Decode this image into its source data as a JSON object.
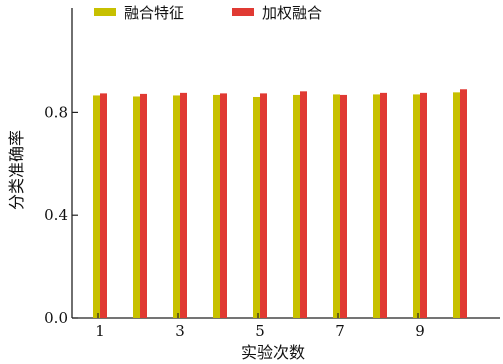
{
  "chart_data": {
    "type": "bar",
    "categories": [
      "1",
      "2",
      "3",
      "4",
      "5",
      "6",
      "7",
      "8",
      "9",
      "10"
    ],
    "xtick_labels": [
      "1",
      "3",
      "5",
      "7",
      "9"
    ],
    "xtick_positions": [
      1,
      3,
      5,
      7,
      9
    ],
    "series": [
      {
        "name": "融合特征",
        "color": "#c7c000",
        "values": [
          0.866,
          0.862,
          0.866,
          0.868,
          0.86,
          0.868,
          0.87,
          0.87,
          0.87,
          0.878
        ]
      },
      {
        "name": "加权融合",
        "color": "#e03a33",
        "values": [
          0.874,
          0.872,
          0.876,
          0.874,
          0.874,
          0.882,
          0.868,
          0.876,
          0.876,
          0.89
        ]
      }
    ],
    "xlabel": "实验次数",
    "ylabel": "分类准确率",
    "ylim": [
      0.0,
      1.0
    ],
    "yticks": [
      0.0,
      0.4,
      0.8
    ],
    "ytick_labels": [
      "0.0",
      "0.4",
      "0.8"
    ],
    "grid": false,
    "legend_position": "top"
  }
}
